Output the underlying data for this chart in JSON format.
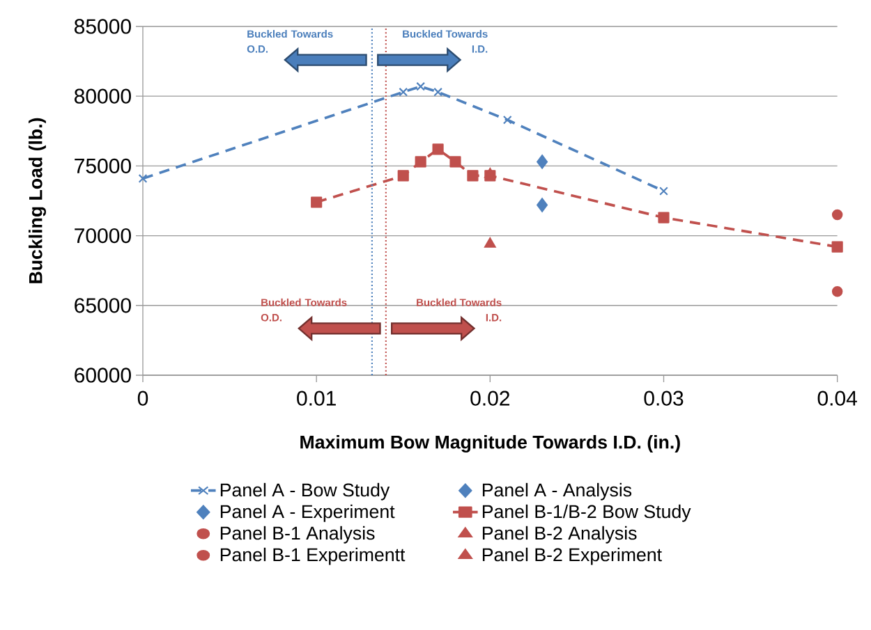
{
  "chart_data": {
    "type": "line",
    "xlabel": "Maximum Bow Magnitude Towards I.D.  (in.)",
    "ylabel": "Buckling Load (lb.)",
    "xlim": [
      0,
      0.04
    ],
    "ylim": [
      60000,
      85000
    ],
    "xticks": [
      0,
      0.01,
      0.02,
      0.03,
      0.04
    ],
    "yticks": [
      60000,
      65000,
      70000,
      75000,
      80000,
      85000
    ],
    "grid": "y",
    "legend": "bottom",
    "series": [
      {
        "name": "Panel A - Bow Study",
        "color": "#4f81bd",
        "marker": "cross",
        "line_style": "dashed",
        "x": [
          0,
          0.015,
          0.016,
          0.017,
          0.021,
          0.03
        ],
        "values": [
          74100,
          80300,
          80700,
          80300,
          78300,
          73200
        ]
      },
      {
        "name": "Panel A - Analysis",
        "type": "scatter",
        "color": "#4f81bd",
        "marker": "diamond",
        "x": [
          0.023
        ],
        "values": [
          75300
        ]
      },
      {
        "name": "Panel A - Experiment",
        "type": "scatter",
        "color": "#4f81bd",
        "marker": "diamond",
        "x": [
          0.023
        ],
        "values": [
          72200
        ]
      },
      {
        "name": "Panel B-1/B-2 Bow Study",
        "color": "#c0504d",
        "marker": "square",
        "line_style": "dashed",
        "x": [
          0.01,
          0.015,
          0.016,
          0.017,
          0.018,
          0.019,
          0.02,
          0.03,
          0.04
        ],
        "values": [
          72400,
          74300,
          75300,
          76200,
          75300,
          74300,
          74300,
          71300,
          69200
        ]
      },
      {
        "name": "Panel B-1 Analysis",
        "type": "scatter",
        "color": "#c0504d",
        "marker": "circle",
        "x": [
          0.04
        ],
        "values": [
          66000
        ]
      },
      {
        "name": "Panel B-2 Analysis",
        "type": "scatter",
        "color": "#c0504d",
        "marker": "triangle",
        "x": [
          0.02
        ],
        "values": [
          74400
        ]
      },
      {
        "name": "Panel B-1 Experimentt",
        "type": "scatter",
        "color": "#c0504d",
        "marker": "circle",
        "x": [
          0.04
        ],
        "values": [
          71500
        ]
      },
      {
        "name": "Panel B-2 Experiment",
        "type": "scatter",
        "color": "#c0504d",
        "marker": "triangle",
        "x": [
          0.02
        ],
        "values": [
          69400
        ]
      }
    ],
    "ref_lines": [
      {
        "axis": "x",
        "value": 0.0132,
        "color": "#4a7ebb",
        "line_style": "dotted"
      },
      {
        "axis": "x",
        "value": 0.014,
        "color": "#c0504d",
        "line_style": "dotted"
      }
    ],
    "annotations": [
      "Buckled Towards O.D.",
      "Buckled Towards I.D.",
      "Buckled Towards O.D.",
      "Buckled Towards I.D."
    ]
  }
}
